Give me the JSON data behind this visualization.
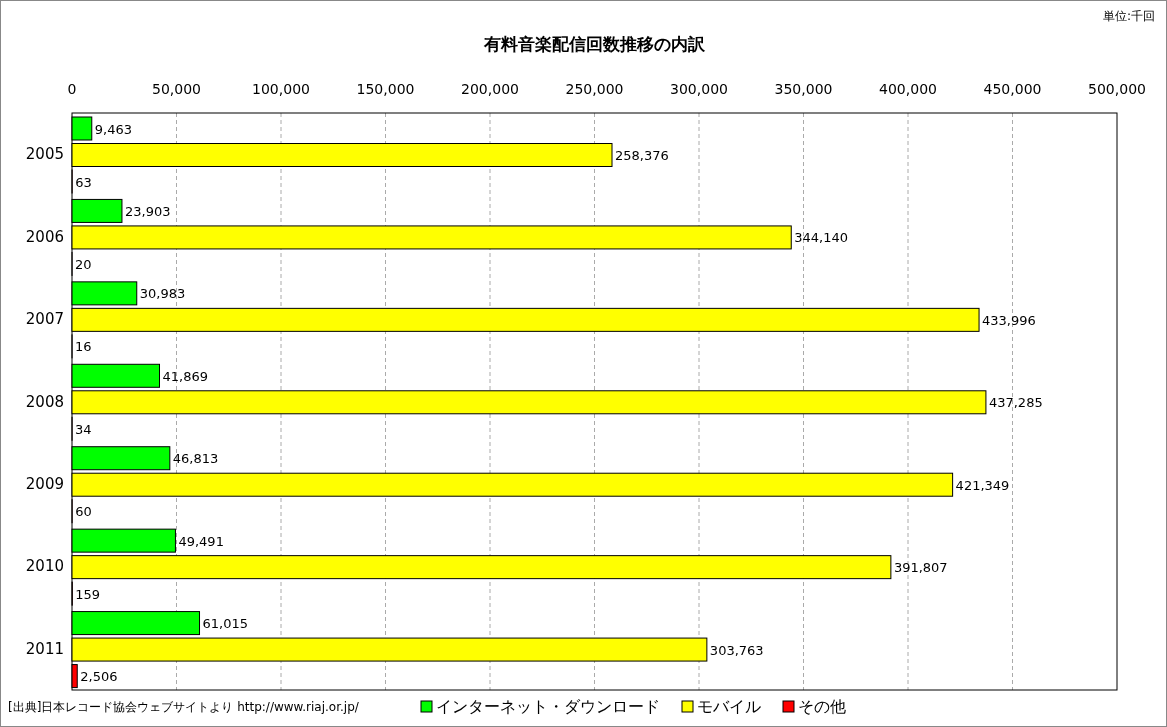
{
  "chart_data": {
    "type": "bar",
    "orientation": "horizontal",
    "title": "有料音楽配信回数推移の内訳",
    "categories": [
      "2005",
      "2006",
      "2007",
      "2008",
      "2009",
      "2010",
      "2011"
    ],
    "series": [
      {
        "name": "インターネット・ダウンロード",
        "color": "#00ff00",
        "values": [
          9463,
          23903,
          30983,
          41869,
          46813,
          49491,
          61015
        ],
        "value_labels": [
          "9,463",
          "23,903",
          "30,983",
          "41,869",
          "46,813",
          "49,491",
          "61,015"
        ]
      },
      {
        "name": "モバイル",
        "color": "#ffff00",
        "values": [
          258376,
          344140,
          433996,
          437285,
          421349,
          391807,
          303763
        ],
        "value_labels": [
          "258,376",
          "344,140",
          "433,996",
          "437,285",
          "421,349",
          "391,807",
          "303,763"
        ]
      },
      {
        "name": "その他",
        "color": "#ff0000",
        "values": [
          63,
          20,
          16,
          34,
          60,
          159,
          2506
        ],
        "value_labels": [
          "63",
          "20",
          "16",
          "34",
          "60",
          "159",
          "2,506"
        ]
      }
    ],
    "xlim": [
      0,
      500000
    ],
    "xticks": [
      0,
      {
        "value": 50000,
        "label": "50,000"
      },
      {
        "value": 100000,
        "label": "100,000"
      },
      {
        "value": 150000,
        "label": "150,000"
      },
      {
        "value": 200000,
        "label": "200,000"
      },
      {
        "value": 250000,
        "label": "250,000"
      },
      {
        "value": 300000,
        "label": "300,000"
      },
      {
        "value": 350000,
        "label": "350,000"
      },
      {
        "value": 400000,
        "label": "400,000"
      },
      {
        "value": 450000,
        "label": "450,000"
      },
      {
        "value": 500000,
        "label": "500,000"
      }
    ],
    "grid": "x",
    "legend": "bottom",
    "annotations": [
      "単位:千回",
      "[出典]日本レコード協会ウェブサイトより http://www.riaj.or.jp/"
    ]
  }
}
